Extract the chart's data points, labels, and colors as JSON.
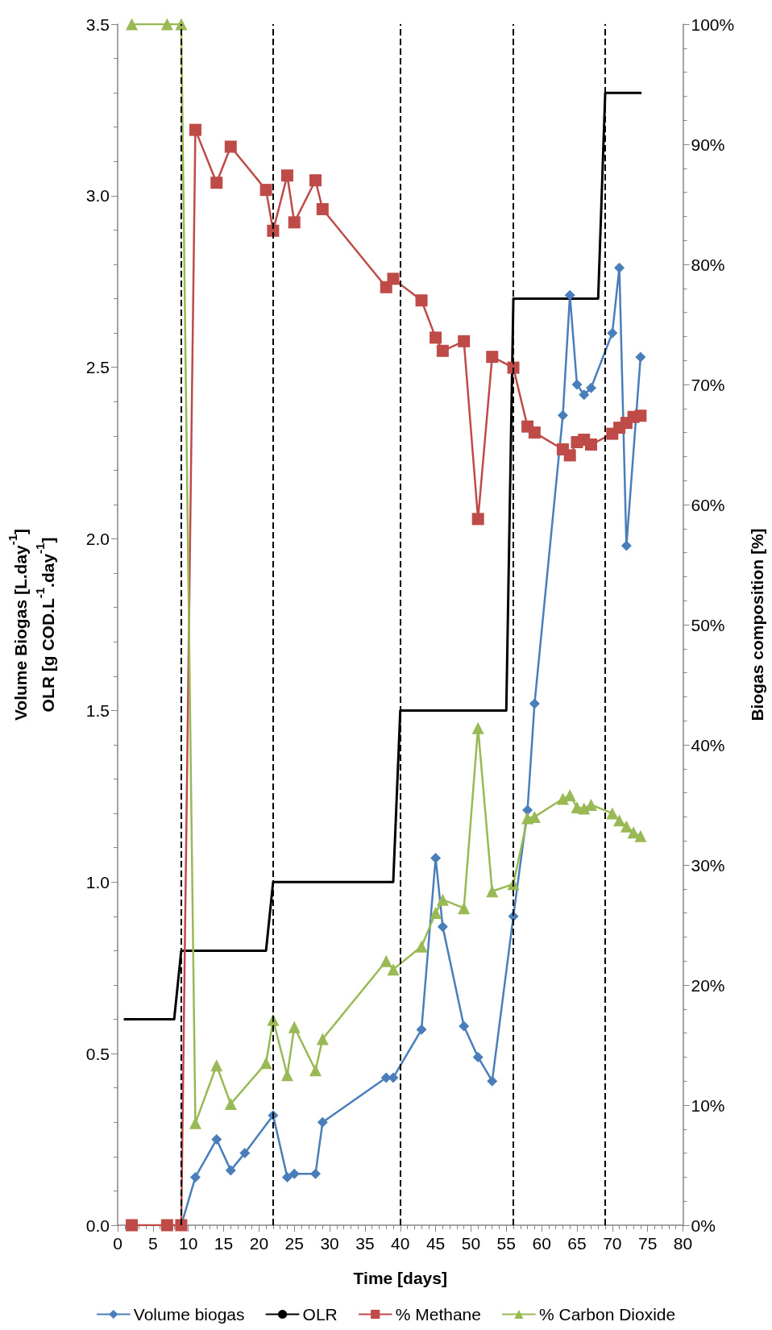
{
  "chart_data": {
    "type": "line",
    "xlabel": "Time [days]",
    "ylabel": "Volume Biogas [L.day$^{-1}$]\nOLR [g COD.L$^{-1}$.day$^{-1}$]",
    "y2label": "Biogas composition [%]",
    "xlim": [
      0,
      80
    ],
    "xticks": [
      0,
      5,
      10,
      15,
      20,
      25,
      30,
      35,
      40,
      45,
      50,
      55,
      60,
      65,
      70,
      75,
      80
    ],
    "ylim": [
      0,
      3.5
    ],
    "yticks": [
      {
        "value": 0,
        "label": "0.0"
      },
      {
        "value": 0.5,
        "label": "0.5"
      },
      {
        "value": 1,
        "label": "1.0"
      },
      {
        "value": 1.5,
        "label": "1.5"
      },
      {
        "value": 2,
        "label": "2.0"
      },
      {
        "value": 2.5,
        "label": "2.5"
      },
      {
        "value": 3,
        "label": "3.0"
      },
      {
        "value": 3.5,
        "label": "3.5"
      }
    ],
    "y2lim": [
      0,
      100
    ],
    "y2ticks": [
      {
        "value": 0,
        "label": "0%"
      },
      {
        "value": 10,
        "label": "10%"
      },
      {
        "value": 20,
        "label": "20%"
      },
      {
        "value": 30,
        "label": "30%"
      },
      {
        "value": 40,
        "label": "40%"
      },
      {
        "value": 50,
        "label": "50%"
      },
      {
        "value": 60,
        "label": "60%"
      },
      {
        "value": 70,
        "label": "70%"
      },
      {
        "value": 80,
        "label": "80%"
      },
      {
        "value": 90,
        "label": "90%"
      },
      {
        "value": 100,
        "label": "100%"
      }
    ],
    "grid": false,
    "legend": "bottom",
    "series": [
      {
        "name": "Volume biogas",
        "color": "#4a7ebb",
        "marker": "diamond",
        "x": [
          9,
          11,
          14,
          16,
          18,
          22,
          24,
          25,
          28,
          29,
          38,
          39,
          43,
          45,
          46,
          49,
          51,
          53,
          56,
          58,
          59,
          63,
          64,
          65,
          66,
          67,
          70,
          71,
          72,
          74
        ],
        "values": [
          0,
          0.14,
          0.25,
          0.16,
          0.21,
          0.32,
          0.14,
          0.15,
          0.15,
          0.3,
          0.43,
          0.43,
          0.57,
          1.07,
          0.87,
          0.58,
          0.49,
          0.42,
          0.9,
          1.21,
          1.52,
          2.36,
          2.71,
          2.45,
          2.42,
          2.44,
          2.6,
          2.79,
          1.98,
          2.53
        ]
      },
      {
        "name": "OLR",
        "color": "#000000",
        "marker": "none",
        "x": [
          1,
          8,
          9,
          21,
          22,
          39,
          40,
          55,
          56,
          68,
          69,
          74
        ],
        "values": [
          0.6,
          0.6,
          0.8,
          0.8,
          1,
          1,
          1.5,
          1.5,
          2.7,
          2.7,
          3.3,
          3.3
        ]
      },
      {
        "name": "% Methane",
        "color": "#be4b48",
        "marker": "square",
        "axis": "y2",
        "x": [
          2,
          7,
          9,
          11,
          14,
          16,
          21,
          22,
          24,
          25,
          28,
          29,
          38,
          39,
          43,
          45,
          46,
          49,
          51,
          53,
          56,
          58,
          59,
          63,
          64,
          65,
          66,
          67,
          70,
          71,
          72,
          73,
          74
        ],
        "values": [
          0,
          0,
          0,
          91.2,
          86.8,
          89.8,
          86.2,
          82.8,
          87.4,
          83.5,
          87,
          84.6,
          78.1,
          78.8,
          77,
          73.9,
          72.8,
          73.6,
          58.8,
          72.3,
          71.4,
          66.5,
          66,
          64.6,
          64.1,
          65.2,
          65.4,
          65,
          65.9,
          66.4,
          66.8,
          67.3,
          67.4
        ]
      },
      {
        "name": "% Carbon Dioxide",
        "color": "#98b954",
        "marker": "triangle",
        "axis": "y2",
        "x": [
          2,
          7,
          9,
          11,
          14,
          16,
          21,
          22,
          24,
          25,
          28,
          29,
          38,
          39,
          43,
          45,
          46,
          49,
          51,
          53,
          56,
          58,
          59,
          63,
          64,
          65,
          66,
          67,
          70,
          71,
          72,
          73,
          74
        ],
        "values": [
          100,
          100,
          100,
          8.5,
          13.3,
          10.1,
          13.5,
          17.1,
          12.5,
          16.5,
          12.9,
          15.5,
          22,
          21.3,
          23.2,
          26,
          27.1,
          26.4,
          41.4,
          27.8,
          28.4,
          33.9,
          34,
          35.5,
          35.8,
          34.8,
          34.7,
          35,
          34.3,
          33.7,
          33.2,
          32.7,
          32.4
        ]
      }
    ],
    "ref_lines": [
      {
        "axis": "x",
        "value": 9,
        "color": "#000000",
        "line_style": "dashed"
      },
      {
        "axis": "x",
        "value": 22,
        "color": "#000000",
        "line_style": "dashed"
      },
      {
        "axis": "x",
        "value": 40,
        "color": "#000000",
        "line_style": "dashed"
      },
      {
        "axis": "x",
        "value": 56,
        "color": "#000000",
        "line_style": "dashed"
      },
      {
        "axis": "x",
        "value": 69,
        "color": "#000000",
        "line_style": "dashed"
      }
    ]
  }
}
